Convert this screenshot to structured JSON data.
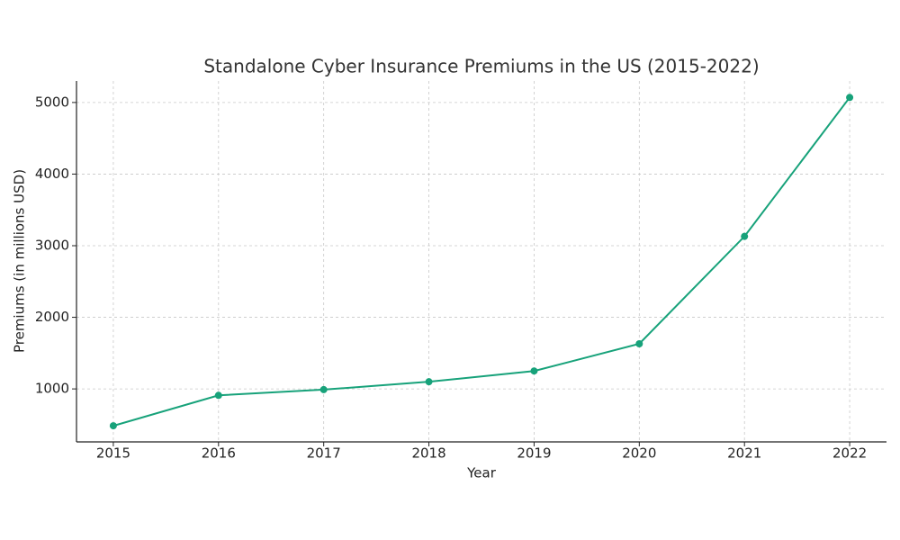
{
  "chart_data": {
    "type": "line",
    "title": "Standalone Cyber Insurance Premiums in the US (2015-2022)",
    "x_label": "Year",
    "y_label": "Premiums (in millions USD)",
    "x": [
      2015,
      2016,
      2017,
      2018,
      2019,
      2020,
      2021,
      2022
    ],
    "series": [
      {
        "name": "Premiums",
        "color": "#17a27a",
        "values": [
          485,
          910,
          990,
          1100,
          1250,
          1630,
          3130,
          5070
        ]
      }
    ],
    "xlim": [
      2014.65,
      2022.35
    ],
    "xticks": [
      2015,
      2016,
      2017,
      2018,
      2019,
      2020,
      2021,
      2022
    ],
    "ylim": [
      260,
      5300
    ],
    "yticks": [
      1000,
      2000,
      3000,
      4000,
      5000
    ],
    "grid": true
  }
}
